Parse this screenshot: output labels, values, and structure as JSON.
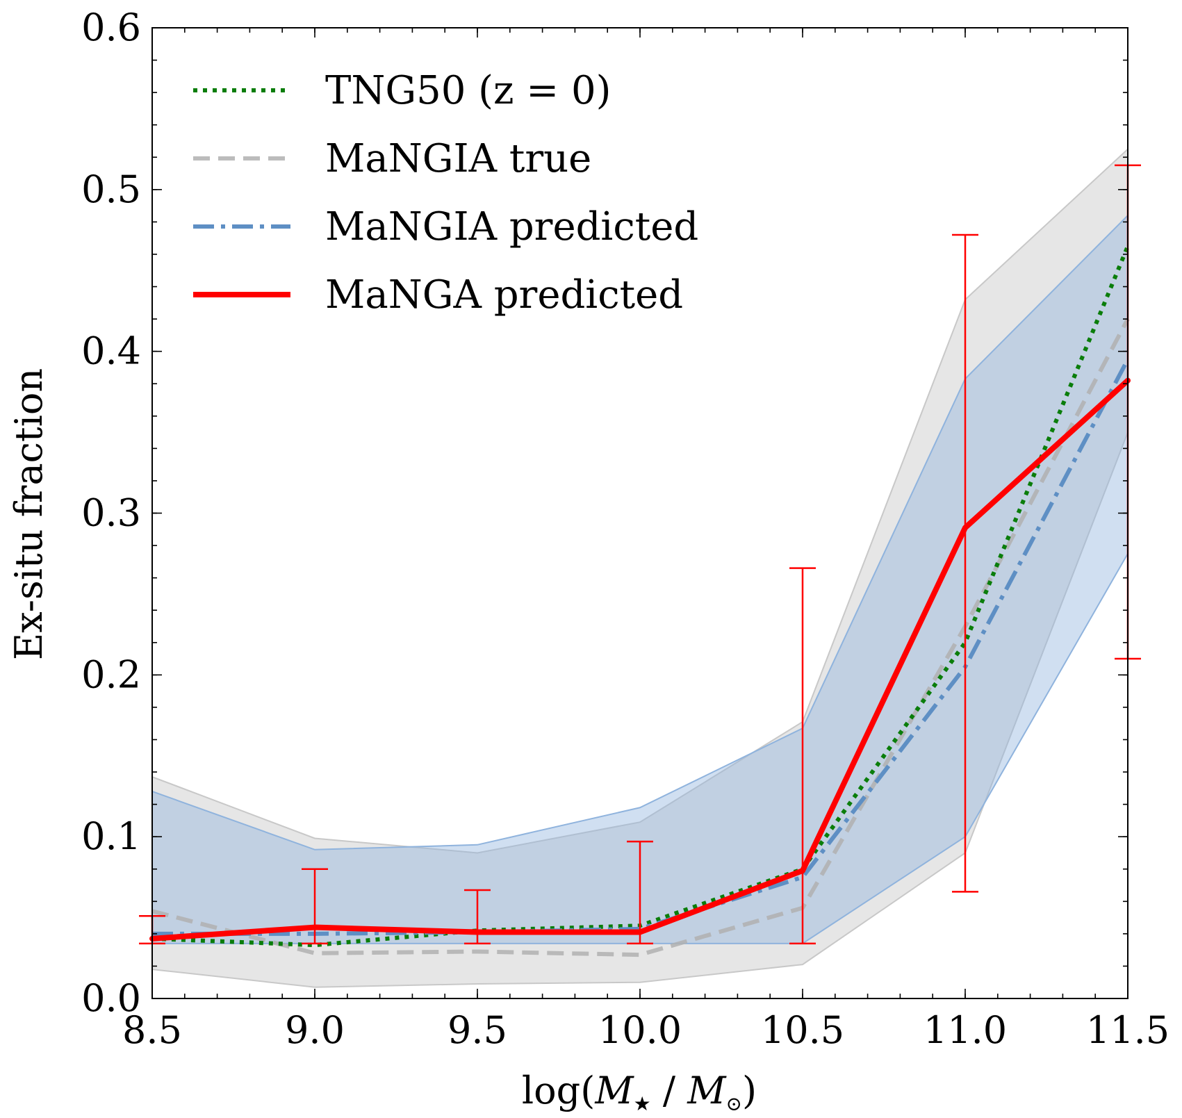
{
  "chart_data": {
    "type": "line",
    "xlabel": "log(M★ / M⊙)",
    "xlabel_parts": {
      "prefix": "log(",
      "m1": "M",
      "sub1": "★",
      "slash": " / ",
      "m2": "M",
      "sub2": "⊙",
      "suffix": ")"
    },
    "ylabel": "Ex-situ fraction",
    "xlim": [
      8.5,
      11.5
    ],
    "ylim": [
      0.0,
      0.6
    ],
    "xticks": [
      "8.5",
      "9.0",
      "9.5",
      "10.0",
      "10.5",
      "11.0",
      "11.5"
    ],
    "yticks": [
      "0.0",
      "0.1",
      "0.2",
      "0.3",
      "0.4",
      "0.5",
      "0.6"
    ],
    "x": [
      8.5,
      9.0,
      9.5,
      10.0,
      10.5,
      11.0,
      11.5
    ],
    "bands": [
      {
        "name": "MaNGIA true range",
        "color": "#c8c8c8",
        "lower": [
          0.018,
          0.007,
          0.009,
          0.01,
          0.021,
          0.09,
          0.35
        ],
        "upper": [
          0.137,
          0.099,
          0.09,
          0.109,
          0.171,
          0.432,
          0.525
        ]
      },
      {
        "name": "MaNGIA predicted range",
        "color": "#8fb3dd",
        "lower": [
          0.034,
          0.034,
          0.034,
          0.034,
          0.034,
          0.1,
          0.275
        ],
        "upper": [
          0.128,
          0.092,
          0.095,
          0.118,
          0.167,
          0.383,
          0.484
        ]
      }
    ],
    "series": [
      {
        "name": "TNG50 (z = 0)",
        "color": "#0a7d0a",
        "style": "dotted",
        "values": [
          0.037,
          0.033,
          0.042,
          0.045,
          0.08,
          0.22,
          0.465
        ]
      },
      {
        "name": "MaNGIA true",
        "color": "#b0b0b0",
        "style": "dashed",
        "values": [
          0.054,
          0.028,
          0.029,
          0.027,
          0.056,
          0.23,
          0.42
        ]
      },
      {
        "name": "MaNGIA predicted",
        "color": "#5e8fc4",
        "style": "dashdot",
        "values": [
          0.04,
          0.04,
          0.041,
          0.043,
          0.075,
          0.205,
          0.395
        ]
      },
      {
        "name": "MaNGA predicted",
        "color": "#ff0000",
        "style": "solid",
        "values": [
          0.037,
          0.044,
          0.041,
          0.041,
          0.079,
          0.291,
          0.382
        ],
        "err_low": [
          0.034,
          0.034,
          0.034,
          0.034,
          0.034,
          0.066,
          0.21
        ],
        "err_high": [
          0.051,
          0.08,
          0.067,
          0.097,
          0.266,
          0.472,
          0.515
        ]
      }
    ],
    "legend_position": "top-left"
  }
}
